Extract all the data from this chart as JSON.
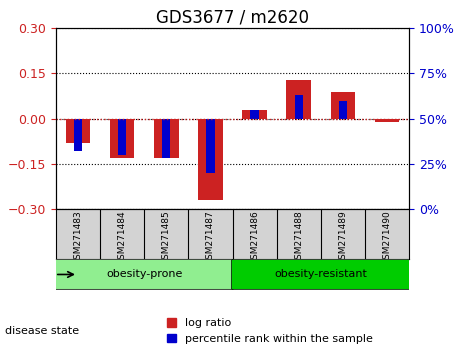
{
  "title": "GDS3677 / m2620",
  "samples": [
    "GSM271483",
    "GSM271484",
    "GSM271485",
    "GSM271487",
    "GSM271486",
    "GSM271488",
    "GSM271489",
    "GSM271490"
  ],
  "log_ratio": [
    -0.08,
    -0.13,
    -0.13,
    -0.27,
    0.03,
    0.13,
    0.09,
    -0.01
  ],
  "percentile": [
    32,
    30,
    28,
    20,
    55,
    63,
    60,
    50
  ],
  "ylim_left": [
    -0.3,
    0.3
  ],
  "ylim_right": [
    0,
    100
  ],
  "yticks_left": [
    -0.3,
    -0.15,
    0,
    0.15,
    0.3
  ],
  "yticks_right": [
    0,
    25,
    50,
    75,
    100
  ],
  "groups": [
    {
      "label": "obesity-prone",
      "indices": [
        0,
        1,
        2,
        3
      ],
      "color": "#90ee90"
    },
    {
      "label": "obesity-resistant",
      "indices": [
        4,
        5,
        6,
        7
      ],
      "color": "#00cc00"
    }
  ],
  "group_label": "disease state",
  "bar_width": 0.35,
  "log_ratio_color": "#cc2222",
  "percentile_color": "#0000cc",
  "zero_line_color": "#cc2222",
  "grid_color": "#000000",
  "background_color": "#ffffff",
  "plot_bg_color": "#ffffff",
  "legend_log_ratio": "log ratio",
  "legend_percentile": "percentile rank within the sample",
  "tick_label_color_left": "#cc2222",
  "tick_label_color_right": "#0000cc",
  "sample_box_color": "#d3d3d3",
  "title_fontsize": 12,
  "axis_fontsize": 9,
  "legend_fontsize": 8
}
